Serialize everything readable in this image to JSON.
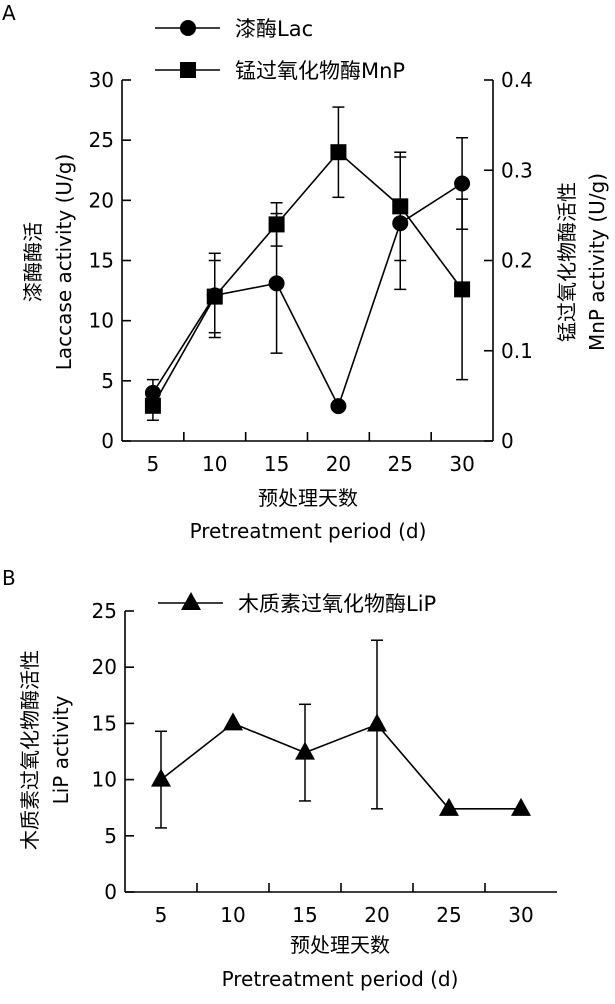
{
  "chart_data": [
    {
      "panel": "A",
      "type": "line",
      "x": [
        5,
        10,
        15,
        20,
        25,
        30
      ],
      "xtick_labels": [
        "5",
        "10",
        "15",
        "20",
        "25",
        "30"
      ],
      "xlabel_cn": "预处理天数",
      "xlabel": "Pretreatment period (d)",
      "ylabel_cn": "漆酶酶活",
      "ylabel": "Laccase activity (U/g)",
      "ylim": [
        0,
        30
      ],
      "yticks": [
        "0",
        "5",
        "10",
        "15",
        "20",
        "25",
        "30"
      ],
      "y2label_cn": "锰过氧化物酶活性",
      "y2label": "MnP activity (U/g)",
      "y2lim": [
        0,
        0.4
      ],
      "y2ticks": [
        "0",
        "0.1",
        "0.2",
        "0.3",
        "0.4"
      ],
      "legend_position": "top",
      "series": [
        {
          "name": "漆酶Lac",
          "axis": "left",
          "marker": "circle",
          "values": [
            4.0,
            12.1,
            13.1,
            2.9,
            18.1,
            21.4
          ],
          "errors": [
            1.1,
            3.5,
            5.8,
            0,
            5.5,
            3.8
          ]
        },
        {
          "name": "锰过氧化物酶MnP",
          "axis": "right",
          "marker": "square",
          "values": [
            0.039,
            0.16,
            0.24,
            0.32,
            0.26,
            0.168
          ],
          "errors": [
            0.016,
            0.04,
            0.024,
            0.05,
            0.06,
            0.1
          ]
        }
      ]
    },
    {
      "panel": "B",
      "type": "line",
      "x": [
        5,
        10,
        15,
        20,
        25,
        30
      ],
      "xtick_labels": [
        "5",
        "10",
        "15",
        "20",
        "25",
        "30"
      ],
      "xlabel_cn": "预处理天数",
      "xlabel": "Pretreatment period (d)",
      "ylabel_cn": "木质素过氧化物酶活性",
      "ylabel": "LiP activity",
      "ylim": [
        0,
        25
      ],
      "yticks": [
        "0",
        "5",
        "10",
        "15",
        "20",
        "25"
      ],
      "legend_position": "top",
      "series": [
        {
          "name": "木质素过氧化物酶LiP",
          "axis": "left",
          "marker": "triangle",
          "values": [
            10.0,
            15.0,
            12.4,
            14.9,
            7.4,
            7.4
          ],
          "errors": [
            4.3,
            0,
            4.3,
            7.5,
            0,
            0
          ]
        }
      ]
    }
  ]
}
